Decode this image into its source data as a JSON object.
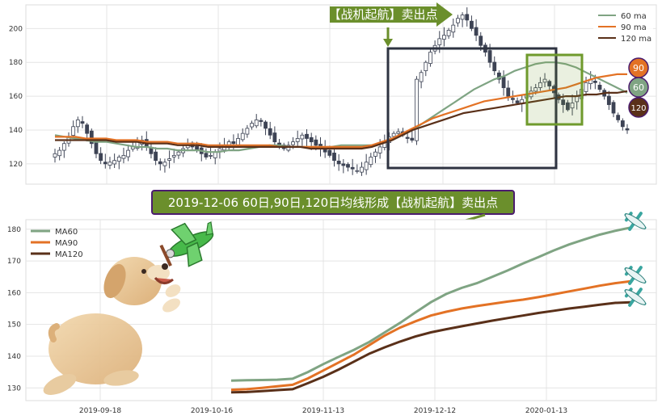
{
  "colors": {
    "ma60": "#7fa483",
    "ma90": "#e37225",
    "ma120": "#5a3019",
    "candle": "#3d4354",
    "annotation_green": "#6f8f2e",
    "annotation_bg": "#6b8f2c",
    "annotation_border": "#4b1c6e",
    "box_dark": "#2e3341",
    "box_green": "#6f9a2c",
    "grid": "#e4e4e4"
  },
  "annotations": {
    "top_banner": "【战机起航】卖出点",
    "middle_banner": "2019-12-06 60日,90日,120日均线形成【战机起航】卖出点",
    "badge_90": "90",
    "badge_60": "60",
    "badge_120": "120"
  },
  "icons": {
    "plane": "airplane-icon",
    "dog": "dog-with-toy-plane-illustration"
  },
  "chart_data": [
    {
      "type": "candlestick",
      "ylim": [
        108,
        214
      ],
      "yticks": [
        120,
        140,
        160,
        180,
        200
      ],
      "grid": true,
      "legend": {
        "placement": "top-right",
        "entries": [
          "60 ma",
          "90 ma",
          "120 ma"
        ]
      },
      "ohlc": {
        "note_x": "index = trading day, ~2019-08-22 to 2020-02-12",
        "close_path": [
          126,
          128,
          132,
          136,
          142,
          146,
          144,
          138,
          132,
          126,
          122,
          120,
          121,
          122,
          124,
          125,
          128,
          130,
          133,
          134,
          130,
          126,
          122,
          120,
          121,
          123,
          125,
          127,
          129,
          131,
          130,
          128,
          126,
          124,
          125,
          127,
          129,
          131,
          133,
          132,
          135,
          138,
          141,
          144,
          146,
          145,
          141,
          137,
          133,
          130,
          129,
          131,
          133,
          135,
          137,
          135,
          133,
          131,
          129,
          127,
          125,
          122,
          120,
          119,
          118,
          117,
          116,
          118,
          121,
          124,
          127,
          130,
          133,
          136,
          138,
          139,
          137,
          135,
          134,
          170,
          174,
          180,
          186,
          190,
          194,
          196,
          199,
          202,
          206,
          208,
          205,
          200,
          196,
          190,
          186,
          180,
          175,
          170,
          165,
          160,
          158,
          156,
          158,
          161,
          163,
          165,
          168,
          170,
          166,
          162,
          158,
          155,
          152,
          156,
          160,
          164,
          168,
          170,
          168,
          164,
          160,
          155,
          150,
          146,
          142,
          140
        ]
      },
      "series": [
        {
          "name": "60 ma",
          "x_start": 0,
          "values": [
            137,
            136,
            135,
            134,
            133,
            133,
            132,
            131,
            130,
            130,
            129,
            129,
            128,
            128,
            128,
            127,
            127,
            128,
            128,
            129,
            130,
            131,
            131,
            130,
            130,
            130,
            130,
            130,
            131,
            131,
            131,
            131,
            132,
            134,
            137,
            140,
            144,
            148,
            152,
            156,
            160,
            164,
            167,
            170,
            172,
            175,
            177,
            179,
            180,
            180,
            179,
            177,
            174,
            171,
            168,
            165,
            162
          ]
        },
        {
          "name": "90 ma",
          "x_start": 0,
          "values": [
            136,
            136,
            136,
            135,
            135,
            135,
            134,
            134,
            134,
            133,
            133,
            133,
            132,
            132,
            132,
            131,
            131,
            131,
            131,
            131,
            131,
            131,
            130,
            130,
            130,
            130,
            130,
            130,
            130,
            130,
            130,
            131,
            133,
            135,
            138,
            141,
            144,
            147,
            149,
            151,
            153,
            155,
            157,
            158,
            159,
            160,
            161,
            162,
            163,
            164,
            165,
            167,
            169,
            171,
            172,
            173,
            173
          ]
        },
        {
          "name": "120 ma",
          "x_start": 0,
          "values": [
            134,
            134,
            134,
            134,
            134,
            134,
            133,
            133,
            133,
            132,
            132,
            132,
            131,
            131,
            131,
            130,
            130,
            130,
            130,
            130,
            130,
            130,
            130,
            130,
            130,
            129,
            129,
            129,
            129,
            129,
            129,
            130,
            132,
            134,
            137,
            140,
            142,
            144,
            146,
            148,
            150,
            151,
            152,
            153,
            154,
            155,
            156,
            157,
            158,
            159,
            160,
            160,
            161,
            161,
            162,
            162,
            163
          ]
        }
      ]
    },
    {
      "type": "line",
      "ylim": [
        126,
        183
      ],
      "yticks": [
        130,
        140,
        150,
        160,
        170,
        180
      ],
      "x_tick_labels": [
        "2019-09-18",
        "2019-10-16",
        "2019-11-13",
        "2019-12-12",
        "2020-01-13"
      ],
      "grid": true,
      "legend": {
        "placement": "top-left",
        "entries": [
          "MA60",
          "MA90",
          "MA120"
        ]
      },
      "series": [
        {
          "name": "MA60",
          "values": [
            132.3,
            132.4,
            132.5,
            132.6,
            132.9,
            135.0,
            137.5,
            139.8,
            142.0,
            144.5,
            147.5,
            150.5,
            153.8,
            157.0,
            159.6,
            161.5,
            163.0,
            165.0,
            167.0,
            169.2,
            171.2,
            173.3,
            175.2,
            176.8,
            178.3,
            179.5,
            180.5
          ]
        },
        {
          "name": "MA90",
          "values": [
            129.4,
            129.6,
            130.0,
            130.5,
            131.0,
            133.0,
            135.5,
            138.0,
            140.5,
            143.5,
            146.5,
            149.0,
            151.0,
            152.8,
            154.0,
            155.0,
            155.8,
            156.5,
            157.2,
            157.8,
            158.6,
            159.5,
            160.4,
            161.3,
            162.2,
            163.0,
            163.6
          ]
        },
        {
          "name": "MA120",
          "values": [
            128.6,
            128.7,
            129.0,
            129.3,
            129.6,
            131.5,
            133.5,
            135.8,
            138.3,
            140.8,
            142.8,
            144.6,
            146.2,
            147.5,
            148.5,
            149.4,
            150.3,
            151.2,
            152.0,
            152.8,
            153.6,
            154.3,
            155.0,
            155.6,
            156.2,
            156.8,
            157.0
          ]
        }
      ]
    }
  ]
}
